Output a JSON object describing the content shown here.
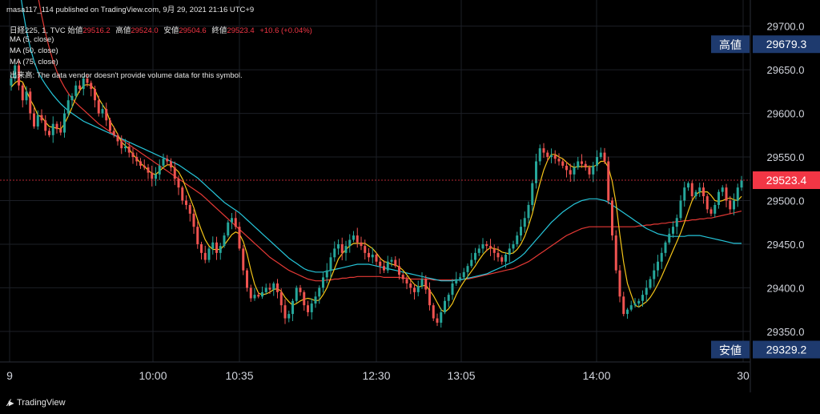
{
  "header": {
    "publisher_line": "masa117_114 published on TradingView.com, 9月 29, 2021 21:16 UTC+9",
    "symbol": "日経225, 1, TVC",
    "open_label": "始値",
    "open_value": "29516.2",
    "high_label": "高値",
    "high_value": "29524.0",
    "low_label": "安値",
    "low_value": "29504.6",
    "close_label": "終値",
    "close_value": "29523.4",
    "change": "+10.6 (+0.04%)",
    "ma1": "MA (5, close)",
    "ma2": "MA (50, close)",
    "ma3": "MA (75, close)",
    "volume_note": "出来高: The data vendor doesn't provide volume data for this symbol."
  },
  "footer": {
    "brand": "TradingView"
  },
  "colors": {
    "up": "#26a69a",
    "down": "#ef5350",
    "ma5": "#f5c518",
    "ma50": "#26c6da",
    "ma75": "#e53935",
    "price_tag": "#f23645",
    "hilo_tag": "#1e3a6e",
    "background": "#000000",
    "grid": "#1c1f26"
  },
  "chart_data": {
    "type": "candlestick",
    "ylim": [
      29315,
      29730
    ],
    "y_ticks": [
      "29700.0",
      "29650.0",
      "29600.0",
      "29550.0",
      "29500.0",
      "29450.0",
      "29400.0",
      "29350.0"
    ],
    "x_ticks": [
      "9",
      "10:00",
      "10:35",
      "12:30",
      "13:05",
      "14:00",
      "30"
    ],
    "last_price": "29523.4",
    "high_label": "高値",
    "high_value": "29679.3",
    "low_label": "安値",
    "low_value": "29329.2",
    "close_series": [
      29640,
      29655,
      29632,
      29615,
      29625,
      29600,
      29585,
      29598,
      29592,
      29580,
      29575,
      29588,
      29582,
      29578,
      29600,
      29615,
      29620,
      29632,
      29628,
      29640,
      29635,
      29628,
      29615,
      29600,
      29605,
      29592,
      29580,
      29575,
      29568,
      29560,
      29562,
      29555,
      29550,
      29545,
      29540,
      29538,
      29532,
      29525,
      29530,
      29540,
      29548,
      29545,
      29538,
      29525,
      29515,
      29500,
      29495,
      29485,
      29470,
      29450,
      29440,
      29432,
      29445,
      29452,
      29440,
      29448,
      29460,
      29475,
      29480,
      29470,
      29445,
      29420,
      29400,
      29388,
      29392,
      29390,
      29395,
      29400,
      29398,
      29405,
      29395,
      29380,
      29365,
      29370,
      29385,
      29400,
      29395,
      29380,
      29372,
      29382,
      29390,
      29400,
      29412,
      29420,
      29435,
      29445,
      29450,
      29440,
      29448,
      29455,
      29460,
      29452,
      29448,
      29440,
      29435,
      29438,
      29430,
      29425,
      29420,
      29430,
      29432,
      29425,
      29415,
      29410,
      29405,
      29400,
      29395,
      29402,
      29410,
      29398,
      29380,
      29365,
      29360,
      29372,
      29385,
      29392,
      29405,
      29410,
      29412,
      29418,
      29425,
      29432,
      29440,
      29445,
      29450,
      29448,
      29445,
      29440,
      29435,
      29430,
      29438,
      29445,
      29450,
      29460,
      29470,
      29480,
      29495,
      29520,
      29545,
      29560,
      29555,
      29550,
      29552,
      29548,
      29545,
      29540,
      29535,
      29530,
      29538,
      29545,
      29542,
      29538,
      29530,
      29540,
      29550,
      29555,
      29545,
      29500,
      29460,
      29420,
      29390,
      29370,
      29375,
      29380,
      29382,
      29385,
      29392,
      29400,
      29410,
      29420,
      29430,
      29440,
      29452,
      29462,
      29470,
      29480,
      29500,
      29515,
      29520,
      29505,
      29510,
      29515,
      29505,
      29490,
      29485,
      29495,
      29510,
      29515,
      29500,
      29490,
      29500,
      29515,
      29523
    ],
    "ma5_series": [
      29630,
      29635,
      29638,
      29636,
      29626,
      29616,
      29608,
      29598,
      29596,
      29590,
      29585,
      29584,
      29583,
      29582,
      29588,
      29597,
      29607,
      29618,
      29626,
      29632,
      29633,
      29632,
      29627,
      29617,
      29610,
      29603,
      29591,
      29584,
      29576,
      29567,
      29563,
      29559,
      29553,
      29548,
      29543,
      29539,
      29535,
      29531,
      29530,
      29534,
      29538,
      29541,
      29541,
      29537,
      29533,
      29525,
      29514,
      29503,
      29492,
      29478,
      29466,
      29455,
      29448,
      29444,
      29444,
      29444,
      29449,
      29455,
      29461,
      29464,
      29462,
      29453,
      29439,
      29420,
      29404,
      29394,
      29392,
      29393,
      29395,
      29398,
      29399,
      29396,
      29389,
      29384,
      29380,
      29382,
      29385,
      29387,
      29388,
      29387,
      29385,
      29386,
      29392,
      29400,
      29411,
      29422,
      29433,
      29439,
      29444,
      29448,
      29451,
      29451,
      29451,
      29451,
      29448,
      29445,
      29440,
      29434,
      29430,
      29429,
      29427,
      29426,
      29424,
      29420,
      29415,
      29409,
      29404,
      29401,
      29402,
      29403,
      29397,
      29391,
      29383,
      29375,
      29372,
      29376,
      29382,
      29392,
      29400,
      29407,
      29413,
      29419,
      29425,
      29432,
      29438,
      29443,
      29446,
      29445,
      29444,
      29441,
      29440,
      29439,
      29440,
      29444,
      29450,
      29459,
      29471,
      29485,
      29503,
      29520,
      29535,
      29546,
      29553,
      29553,
      29550,
      29548,
      29544,
      29540,
      29538,
      29539,
      29539,
      29539,
      29539,
      29539,
      29541,
      29545,
      29545,
      29538,
      29522,
      29497,
      29461,
      29429,
      29405,
      29392,
      29380,
      29378,
      29381,
      29384,
      29389,
      29396,
      29404,
      29413,
      29423,
      29433,
      29443,
      29453,
      29463,
      29475,
      29488,
      29500,
      29507,
      29510,
      29510,
      29510,
      29506,
      29500,
      29499,
      29500,
      29502,
      29503,
      29501,
      29500,
      29505,
      29507,
      29510
    ],
    "ma50_series": [
      29820,
      29785,
      29750,
      29720,
      29695,
      29675,
      29660,
      29648,
      29640,
      29633,
      29627,
      29621,
      29616,
      29611,
      29607,
      29603,
      29600,
      29597,
      29594,
      29591,
      29589,
      29587,
      29585,
      29583,
      29581,
      29579,
      29577,
      29575,
      29573,
      29571,
      29569,
      29567,
      29565,
      29563,
      29561,
      29559,
      29557,
      29555,
      29553,
      29551,
      29549,
      29547,
      29545,
      29543,
      29541,
      29538,
      29535,
      29532,
      29529,
      29526,
      29522,
      29518,
      29514,
      29510,
      29506,
      29502,
      29498,
      29495,
      29492,
      29489,
      29486,
      29482,
      29478,
      29474,
      29470,
      29466,
      29462,
      29458,
      29454,
      29450,
      29446,
      29442,
      29438,
      29434,
      29431,
      29428,
      29425,
      29422,
      29420,
      29419,
      29418,
      29418,
      29418,
      29419,
      29420,
      29421,
      29422,
      29423,
      29424,
      29425,
      29426,
      29427,
      29427,
      29427,
      29427,
      29426,
      29425,
      29424,
      29423,
      29422,
      29421,
      29420,
      29419,
      29418,
      29417,
      29416,
      29415,
      29414,
      29413,
      29412,
      29411,
      29410,
      29409,
      29408,
      29408,
      29408,
      29408,
      29409,
      29409,
      29410,
      29411,
      29412,
      29413,
      29414,
      29415,
      29416,
      29418,
      29420,
      29422,
      29424,
      29426,
      29428,
      29430,
      29433,
      29436,
      29440,
      29445,
      29450,
      29455,
      29460,
      29465,
      29470,
      29475,
      29479,
      29483,
      29487,
      29490,
      29493,
      29496,
      29498,
      29500,
      29501,
      29502,
      29502,
      29502,
      29501,
      29500,
      29498,
      29495,
      29492,
      29489,
      29486,
      29483,
      29480,
      29477,
      29474,
      29471,
      29468,
      29466,
      29464,
      29462,
      29461,
      29460,
      29459,
      29459,
      29459,
      29459,
      29459,
      29460,
      29460,
      29460,
      29460,
      29459,
      29458,
      29457,
      29456,
      29455,
      29454,
      29453,
      29452,
      29451,
      29451,
      29451,
      29451,
      29451,
      29451,
      29451,
      29451,
      29451,
      29451,
      29451
    ],
    "ma75_series": [
      29980,
      29940,
      29900,
      29860,
      29825,
      29790,
      29760,
      29735,
      29712,
      29692,
      29675,
      29660,
      29648,
      29638,
      29630,
      29623,
      29617,
      29612,
      29608,
      29604,
      29600,
      29596,
      29592,
      29588,
      29585,
      29582,
      29579,
      29576,
      29573,
      29570,
      29567,
      29564,
      29561,
      29558,
      29555,
      29552,
      29549,
      29546,
      29543,
      29540,
      29537,
      29534,
      29531,
      29528,
      29525,
      29522,
      29519,
      29516,
      29513,
      29510,
      29507,
      29503,
      29499,
      29495,
      29491,
      29487,
      29483,
      29479,
      29475,
      29471,
      29467,
      29463,
      29459,
      29455,
      29451,
      29447,
      29443,
      29439,
      29435,
      29432,
      29429,
      29426,
      29423,
      29420,
      29418,
      29416,
      29414,
      29412,
      29410,
      29409,
      29408,
      29408,
      29408,
      29409,
      29409,
      29410,
      29410,
      29411,
      29411,
      29412,
      29412,
      29413,
      29413,
      29413,
      29413,
      29413,
      29413,
      29413,
      29412,
      29412,
      29412,
      29412,
      29412,
      29411,
      29411,
      29410,
      29410,
      29410,
      29410,
      29410,
      29410,
      29409,
      29409,
      29409,
      29409,
      29409,
      29409,
      29409,
      29409,
      29410,
      29410,
      29411,
      29412,
      29413,
      29414,
      29415,
      29416,
      29417,
      29418,
      29419,
      29420,
      29421,
      29422,
      29424,
      29426,
      29428,
      29430,
      29433,
      29436,
      29439,
      29442,
      29445,
      29448,
      29451,
      29454,
      29457,
      29460,
      29462,
      29464,
      29466,
      29468,
      29469,
      29470,
      29470,
      29470,
      29470,
      29470,
      29470,
      29470,
      29470,
      29470,
      29470,
      29470,
      29470,
      29470,
      29471,
      29471,
      29472,
      29472,
      29473,
      29473,
      29474,
      29474,
      29475,
      29475,
      29476,
      29476,
      29477,
      29477,
      29478,
      29478,
      29479,
      29479,
      29480,
      29480,
      29481,
      29482,
      29483,
      29484,
      29485,
      29486,
      29487,
      29488,
      29489,
      29490,
      29491,
      29492,
      29493,
      29494,
      29495,
      29496,
      29497,
      29497,
      29498,
      29498
    ]
  }
}
